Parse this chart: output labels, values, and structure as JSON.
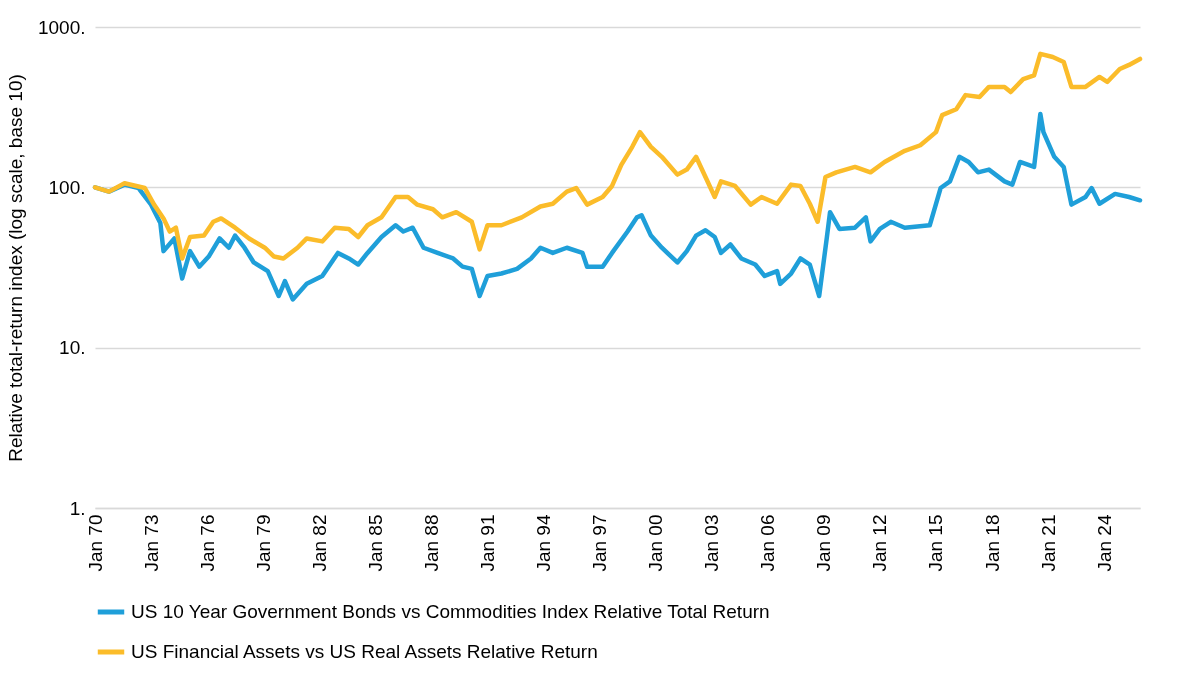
{
  "chart_data": {
    "type": "line",
    "ylabel": "Relative total-return index (log scale, base 10)",
    "log": true,
    "grid": "y",
    "legend": "bottom",
    "line_style": "solid",
    "xlim": [
      "1970-01",
      "2025-12"
    ],
    "xticks": [
      {
        "value": "1970-01",
        "label": "Jan 70"
      },
      {
        "value": "1973-01",
        "label": "Jan 73"
      },
      {
        "value": "1976-01",
        "label": "Jan 76"
      },
      {
        "value": "1979-01",
        "label": "Jan 79"
      },
      {
        "value": "1982-01",
        "label": "Jan 82"
      },
      {
        "value": "1985-01",
        "label": "Jan 85"
      },
      {
        "value": "1988-01",
        "label": "Jan 88"
      },
      {
        "value": "1991-01",
        "label": "Jan 91"
      },
      {
        "value": "1994-01",
        "label": "Jan 94"
      },
      {
        "value": "1997-01",
        "label": "Jan 97"
      },
      {
        "value": "2000-01",
        "label": "Jan 00"
      },
      {
        "value": "2003-01",
        "label": "Jan 03"
      },
      {
        "value": "2006-01",
        "label": "Jan 06"
      },
      {
        "value": "2009-01",
        "label": "Jan 09"
      },
      {
        "value": "2012-01",
        "label": "Jan 12"
      },
      {
        "value": "2015-01",
        "label": "Jan 15"
      },
      {
        "value": "2018-01",
        "label": "Jan 18"
      },
      {
        "value": "2021-01",
        "label": "Jan 21"
      },
      {
        "value": "2024-01",
        "label": "Jan 24"
      }
    ],
    "ylim": [
      1,
      1000
    ],
    "yticks": [
      {
        "value": 1,
        "label": "1."
      },
      {
        "value": 10,
        "label": "10."
      },
      {
        "value": 100,
        "label": "100."
      },
      {
        "value": 1000,
        "label": "1000."
      }
    ],
    "series": [
      {
        "name": "US 10 Year Government Bonds vs Commodities Index Relative Total Return",
        "color": "#1f9fd9",
        "x": [
          "1970-01",
          "1970-10",
          "1971-08",
          "1972-05",
          "1973-01",
          "1973-07",
          "1973-09",
          "1974-04",
          "1974-09",
          "1975-02",
          "1975-08",
          "1976-02",
          "1976-09",
          "1977-03",
          "1977-07",
          "1978-01",
          "1978-07",
          "1979-04",
          "1979-11",
          "1980-03",
          "1980-08",
          "1981-05",
          "1982-03",
          "1983-01",
          "1983-08",
          "1984-02",
          "1984-08",
          "1985-05",
          "1986-02",
          "1986-07",
          "1987-01",
          "1987-08",
          "1988-05",
          "1989-03",
          "1989-09",
          "1990-03",
          "1990-08",
          "1991-01",
          "1991-10",
          "1992-08",
          "1993-05",
          "1993-11",
          "1994-07",
          "1995-04",
          "1996-02",
          "1996-05",
          "1997-03",
          "1997-09",
          "1998-07",
          "1999-01",
          "1999-04",
          "1999-10",
          "2000-05",
          "2001-03",
          "2001-09",
          "2002-03",
          "2002-09",
          "2003-03",
          "2003-07",
          "2004-01",
          "2004-08",
          "2005-05",
          "2005-11",
          "2006-07",
          "2006-09",
          "2007-04",
          "2007-10",
          "2008-04",
          "2008-10",
          "2009-03",
          "2009-05",
          "2009-11",
          "2010-09",
          "2011-04",
          "2011-07",
          "2012-01",
          "2012-08",
          "2013-05",
          "2014-09",
          "2015-04",
          "2015-10",
          "2016-04",
          "2016-10",
          "2017-04",
          "2017-11",
          "2018-09",
          "2019-02",
          "2019-07",
          "2020-04",
          "2020-08",
          "2020-10",
          "2021-05",
          "2021-11",
          "2022-04",
          "2023-01",
          "2023-05",
          "2023-10",
          "2024-08",
          "2025-05",
          "2025-12"
        ],
        "values": [
          100,
          94,
          104,
          99,
          78,
          60,
          40,
          48,
          27,
          40,
          32,
          37,
          48,
          42,
          50,
          42,
          34,
          30,
          21,
          26,
          20,
          25,
          28,
          39,
          36,
          33,
          39,
          49,
          58,
          53,
          56,
          42,
          39,
          36,
          32,
          31,
          21,
          28,
          29,
          31,
          36,
          42,
          39,
          42,
          39,
          32,
          32,
          39,
          53,
          65,
          67,
          50,
          42,
          34,
          40,
          50,
          54,
          49,
          39,
          44,
          36,
          33,
          28,
          30,
          25,
          29,
          36,
          33,
          21,
          49,
          70,
          55,
          56,
          65,
          46,
          55,
          61,
          56,
          58,
          99,
          109,
          155,
          144,
          124,
          129,
          109,
          104,
          144,
          134,
          287,
          221,
          155,
          134,
          78,
          87,
          99,
          79,
          91,
          87,
          83
        ]
      },
      {
        "name": "US Financial Assets vs US Real Assets Relative Return",
        "color": "#fbbc2a",
        "x": [
          "1970-01",
          "1970-10",
          "1971-08",
          "1972-09",
          "1973-03",
          "1973-09",
          "1974-01",
          "1974-05",
          "1974-09",
          "1975-02",
          "1975-11",
          "1976-05",
          "1976-10",
          "1977-07",
          "1978-04",
          "1979-02",
          "1979-08",
          "1980-02",
          "1980-11",
          "1981-05",
          "1982-03",
          "1982-11",
          "1983-08",
          "1984-02",
          "1984-08",
          "1985-05",
          "1986-02",
          "1986-10",
          "1987-04",
          "1988-02",
          "1988-08",
          "1989-05",
          "1990-03",
          "1990-08",
          "1991-01",
          "1991-10",
          "1992-11",
          "1993-11",
          "1994-07",
          "1995-04",
          "1995-10",
          "1996-05",
          "1997-03",
          "1997-09",
          "1998-03",
          "1998-10",
          "1999-03",
          "1999-10",
          "2000-05",
          "2001-03",
          "2001-09",
          "2002-03",
          "2002-09",
          "2003-03",
          "2003-07",
          "2004-04",
          "2005-02",
          "2005-09",
          "2006-07",
          "2007-04",
          "2007-10",
          "2008-04",
          "2008-09",
          "2009-02",
          "2009-09",
          "2010-09",
          "2011-07",
          "2012-04",
          "2013-05",
          "2014-03",
          "2015-01",
          "2015-05",
          "2016-02",
          "2016-08",
          "2017-05",
          "2017-11",
          "2018-09",
          "2019-01",
          "2019-09",
          "2020-04",
          "2020-08",
          "2021-04",
          "2021-11",
          "2022-04",
          "2023-01",
          "2023-10",
          "2024-03",
          "2024-11",
          "2025-05",
          "2025-12"
        ],
        "values": [
          100,
          94,
          106,
          99,
          78,
          64,
          53,
          56,
          36,
          49,
          50,
          61,
          64,
          56,
          48,
          42,
          37,
          36,
          42,
          48,
          46,
          56,
          55,
          49,
          58,
          65,
          87,
          87,
          78,
          73,
          65,
          70,
          61,
          41,
          58,
          58,
          65,
          76,
          79,
          94,
          99,
          78,
          87,
          102,
          138,
          179,
          221,
          179,
          155,
          120,
          129,
          155,
          116,
          87,
          109,
          102,
          78,
          87,
          79,
          104,
          102,
          79,
          61,
          116,
          124,
          134,
          124,
          144,
          169,
          183,
          221,
          282,
          307,
          376,
          366,
          423,
          423,
          393,
          473,
          500,
          680,
          650,
          605,
          423,
          423,
          488,
          454,
          547,
          580,
          632
        ]
      }
    ]
  }
}
